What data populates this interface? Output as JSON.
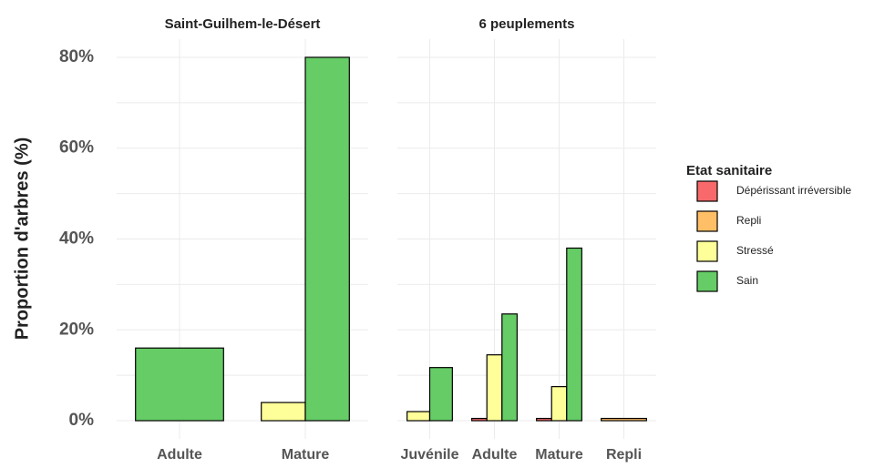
{
  "chart_data": [
    {
      "type": "bar",
      "title": "Saint-Guilhem-le-Désert",
      "ylabel": "Proportion d'arbres (%)",
      "legend_title": "Etat sanitaire",
      "categories": [
        "Adulte",
        "Mature"
      ],
      "series": [
        {
          "name": "Dépérissant irréversible",
          "color": "#f8696b",
          "values": [
            null,
            null
          ]
        },
        {
          "name": "Repli",
          "color": "#ffbf66",
          "values": [
            null,
            null
          ]
        },
        {
          "name": "Stressé",
          "color": "#ffff99",
          "values": [
            null,
            4
          ]
        },
        {
          "name": "Sain",
          "color": "#66cc66",
          "values": [
            16,
            80
          ]
        }
      ],
      "ylim": [
        -4,
        84
      ],
      "yticks": [
        {
          "value": 0,
          "label": "0%"
        },
        {
          "value": 20,
          "label": "20%"
        },
        {
          "value": 40,
          "label": "40%"
        },
        {
          "value": 60,
          "label": "60%"
        },
        {
          "value": 80,
          "label": "80%"
        }
      ],
      "grid": true,
      "legend": "right"
    },
    {
      "type": "bar",
      "title": "6 peuplements",
      "categories": [
        "Juvénile",
        "Adulte",
        "Mature",
        "Repli"
      ],
      "series": [
        {
          "name": "Dépérissant irréversible",
          "color": "#f8696b",
          "values": [
            null,
            0.5,
            0.5,
            null
          ]
        },
        {
          "name": "Repli",
          "color": "#ffbf66",
          "values": [
            null,
            null,
            null,
            0.5
          ]
        },
        {
          "name": "Stressé",
          "color": "#ffff99",
          "values": [
            2,
            14.5,
            7.5,
            null
          ]
        },
        {
          "name": "Sain",
          "color": "#66cc66",
          "values": [
            11.7,
            23.5,
            38,
            null
          ]
        }
      ],
      "ylim": [
        -4,
        84
      ],
      "yticks": [
        0,
        20,
        40,
        60,
        80
      ],
      "grid": true
    }
  ]
}
